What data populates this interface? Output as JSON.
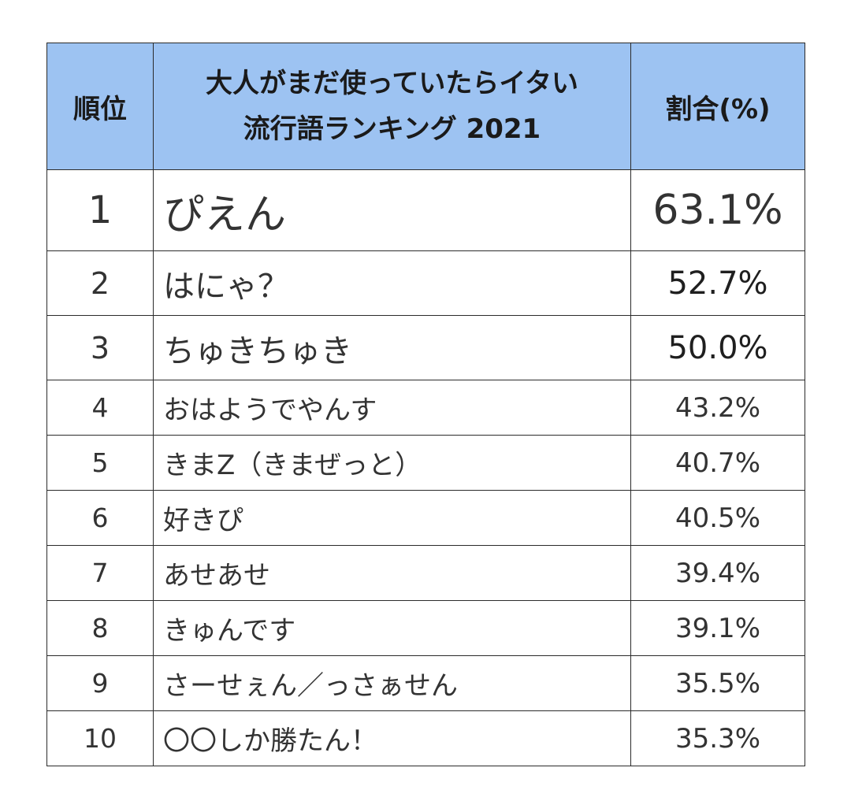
{
  "table": {
    "headers": {
      "rank": "順位",
      "word_line1": "大人がまだ使っていたらイタい",
      "word_line2": "流行語ランキング 2021",
      "ratio": "割合(%)"
    },
    "rows": [
      {
        "rank": "1",
        "word": "ぴえん",
        "ratio": "63.1%"
      },
      {
        "rank": "2",
        "word": "はにゃ？",
        "ratio": "52.7%"
      },
      {
        "rank": "3",
        "word": "ちゅきちゅき",
        "ratio": "50.0%"
      },
      {
        "rank": "4",
        "word": "おはようでやんす",
        "ratio": "43.2%"
      },
      {
        "rank": "5",
        "word": "きまZ（きまぜっと）",
        "ratio": "40.7%"
      },
      {
        "rank": "6",
        "word": "好きぴ",
        "ratio": "40.5%"
      },
      {
        "rank": "7",
        "word": "あせあせ",
        "ratio": "39.4%"
      },
      {
        "rank": "8",
        "word": "きゅんです",
        "ratio": "39.1%"
      },
      {
        "rank": "9",
        "word": "さーせぇん／っさぁせん",
        "ratio": "35.5%"
      },
      {
        "rank": "10",
        "word": "〇〇しか勝たん！",
        "ratio": "35.3%"
      }
    ]
  },
  "colors": {
    "header_background": "#9dc3f2",
    "border": "#2b2b2b",
    "text": "#333333"
  }
}
